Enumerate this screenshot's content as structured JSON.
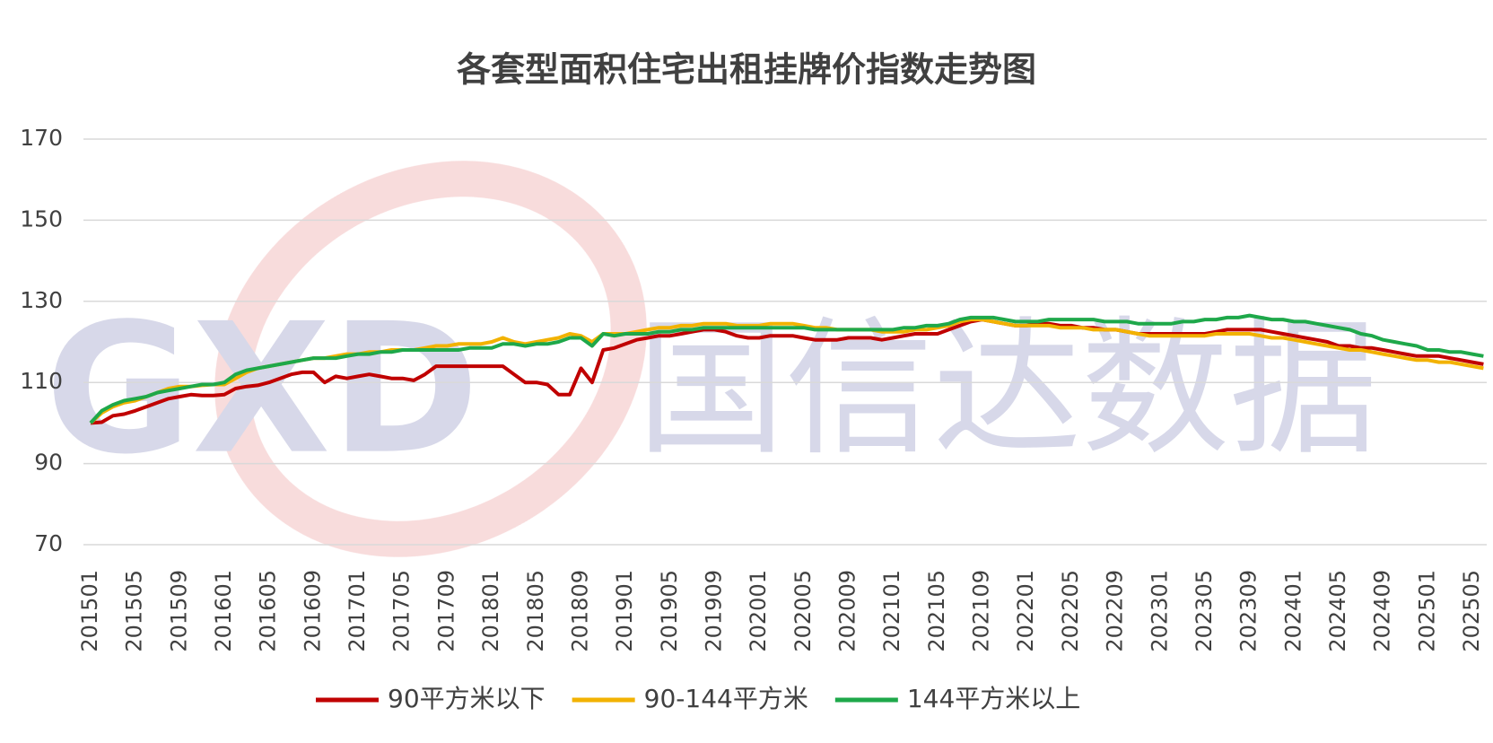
{
  "chart_data": {
    "type": "line",
    "title": "各套型面积住宅出租挂牌价指数走势图",
    "categories": [
      "201501",
      null,
      null,
      null,
      "201505",
      null,
      null,
      null,
      "201509",
      null,
      null,
      null,
      "201601",
      null,
      null,
      null,
      "201605",
      null,
      null,
      null,
      "201609",
      null,
      null,
      null,
      "201701",
      null,
      null,
      null,
      "201705",
      null,
      null,
      null,
      "201709",
      null,
      null,
      null,
      "201801",
      null,
      null,
      null,
      "201805",
      null,
      null,
      null,
      "201809",
      null,
      null,
      null,
      "201901",
      null,
      null,
      null,
      "201905",
      null,
      null,
      null,
      "201909",
      null,
      null,
      null,
      "202001",
      null,
      null,
      null,
      "202005",
      null,
      null,
      null,
      "202009",
      null,
      null,
      null,
      "202101",
      null,
      null,
      null,
      "202105",
      null,
      null,
      null,
      "202109",
      null,
      null,
      null,
      "202201",
      null,
      null,
      null,
      "202205",
      null,
      null,
      null,
      "202209",
      null,
      null,
      null,
      "202301",
      null,
      null,
      null,
      "202305",
      null,
      null,
      null,
      "202309",
      null,
      null,
      null,
      "202401",
      null,
      null,
      null,
      "202405",
      null,
      null,
      null,
      "202409",
      null,
      null,
      null,
      "202501",
      null,
      null,
      null,
      "202505",
      null
    ],
    "series": [
      {
        "name": "90平方米以下",
        "color": "#c00000",
        "values": [
          100,
          100.2,
          101.8,
          102.2,
          103,
          104,
          105,
          106,
          106.5,
          107,
          106.8,
          106.8,
          107,
          108.5,
          109,
          109.3,
          110,
          111,
          112,
          112.5,
          112.5,
          110,
          111.5,
          111,
          111.5,
          112,
          111.5,
          111,
          111,
          110.5,
          112,
          114,
          114,
          114,
          114,
          114,
          114,
          114,
          112,
          110,
          110,
          109.5,
          107,
          107,
          113.5,
          110,
          118,
          118.5,
          119.5,
          120.5,
          121,
          121.5,
          121.5,
          122,
          122.5,
          123,
          123,
          122.5,
          121.5,
          121,
          121,
          121.5,
          121.5,
          121.5,
          121,
          120.5,
          120.5,
          120.5,
          121,
          121,
          121,
          120.5,
          121,
          121.5,
          122,
          122,
          122,
          123,
          124,
          125,
          125.5,
          125,
          124.5,
          124,
          124,
          124.5,
          124.5,
          124,
          124,
          123.5,
          123.5,
          123,
          123,
          122.5,
          122,
          122,
          122,
          122,
          122,
          122,
          122,
          122.5,
          123,
          123,
          123,
          123,
          122.5,
          122,
          121.5,
          121,
          120.5,
          120,
          119,
          119,
          118.5,
          118.5,
          118,
          117.5,
          117,
          116.5,
          116.5,
          116.5,
          116,
          115.5,
          115,
          114.5
        ]
      },
      {
        "name": "90-144平方米",
        "color": "#f2b200",
        "values": [
          100,
          102.5,
          104,
          105,
          105.5,
          106.5,
          107.5,
          108.5,
          109,
          109,
          109.3,
          109.5,
          109.5,
          111,
          112.5,
          113.5,
          114,
          114.5,
          115,
          115.5,
          116,
          116,
          116.5,
          117,
          117,
          117.5,
          117.5,
          118,
          118,
          118,
          118.5,
          119,
          119,
          119.5,
          119.5,
          119.5,
          120,
          121,
          120,
          119.5,
          120,
          120.5,
          121,
          122,
          121.5,
          120,
          122,
          122,
          122,
          122.5,
          123,
          123.5,
          123.5,
          124,
          124,
          124.5,
          124.5,
          124.5,
          124,
          124,
          124,
          124.5,
          124.5,
          124.5,
          124,
          123.5,
          123.5,
          123,
          123,
          123,
          123,
          122.5,
          122.5,
          122.5,
          123,
          123,
          123.5,
          124,
          125,
          125.5,
          125.5,
          125,
          124.5,
          124,
          124,
          124,
          124,
          123.5,
          123.5,
          123.5,
          123,
          123,
          123,
          122.5,
          122,
          121.5,
          121.5,
          121.5,
          121.5,
          121.5,
          121.5,
          122,
          122,
          122,
          122,
          121.5,
          121,
          121,
          120.5,
          120,
          119.5,
          119,
          118.5,
          118,
          118,
          117.5,
          117,
          116.5,
          116,
          115.5,
          115.5,
          115,
          115,
          114.5,
          114,
          113.5
        ]
      },
      {
        "name": "144平方米以上",
        "color": "#1ea84a",
        "values": [
          100,
          103,
          104.5,
          105.5,
          106,
          106.5,
          107.5,
          108,
          108.5,
          109,
          109.5,
          109.5,
          110,
          112,
          113,
          113.5,
          114,
          114.5,
          115,
          115.5,
          116,
          116,
          116,
          116.5,
          117,
          117,
          117.5,
          117.5,
          118,
          118,
          118,
          118,
          118,
          118,
          118.5,
          118.5,
          118.5,
          119.5,
          119.5,
          119,
          119.5,
          119.5,
          120,
          121,
          121,
          119,
          122,
          121.5,
          122,
          122,
          122,
          122.5,
          122.5,
          123,
          123,
          123.5,
          123.5,
          123.5,
          123.5,
          123.5,
          123.5,
          123.5,
          123.5,
          123.5,
          123.5,
          123,
          123,
          123,
          123,
          123,
          123,
          123,
          123,
          123.5,
          123.5,
          124,
          124,
          124.5,
          125.5,
          126,
          126,
          126,
          125.5,
          125,
          125,
          125,
          125.5,
          125.5,
          125.5,
          125.5,
          125.5,
          125,
          125,
          125,
          124.5,
          124.5,
          124.5,
          124.5,
          125,
          125,
          125.5,
          125.5,
          126,
          126,
          126.5,
          126,
          125.5,
          125.5,
          125,
          125,
          124.5,
          124,
          123.5,
          123,
          122,
          121.5,
          120.5,
          120,
          119.5,
          119,
          118,
          118,
          117.5,
          117.5,
          117,
          116.5
        ]
      }
    ],
    "ylim": [
      70,
      170
    ],
    "yticks": [
      70,
      90,
      110,
      130,
      150,
      170
    ],
    "grid": true,
    "legend": "bottom"
  },
  "watermark": {
    "logo": "GXD",
    "text": "国信达数据"
  }
}
